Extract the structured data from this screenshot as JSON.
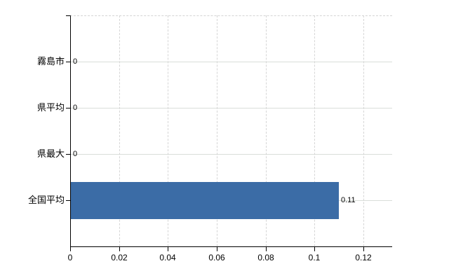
{
  "chart_data": {
    "type": "bar",
    "orientation": "horizontal",
    "title": "",
    "xlabel": "",
    "ylabel": "",
    "legend": null,
    "grid": true,
    "categories": [
      "霧島市",
      "県平均",
      "県最大",
      "全国平均"
    ],
    "values": [
      0,
      0,
      0,
      0.11
    ],
    "value_labels": [
      "0",
      "0",
      "0",
      "0.11"
    ],
    "x_ticks": [
      0,
      0.02,
      0.04,
      0.06,
      0.08,
      0.1,
      0.12
    ],
    "x_tick_labels": [
      "0",
      "0.02",
      "0.04",
      "0.06",
      "0.08",
      "0.1",
      "0.12"
    ],
    "xlim": [
      0,
      0.1318
    ],
    "colors": {
      "bar": "#3b6ca6",
      "axis": "#000000",
      "gridline_horizontal": "#d9ded9",
      "gridline_vertical": "#d6d6d6",
      "text": "#000000",
      "background": "#ffffff"
    }
  }
}
